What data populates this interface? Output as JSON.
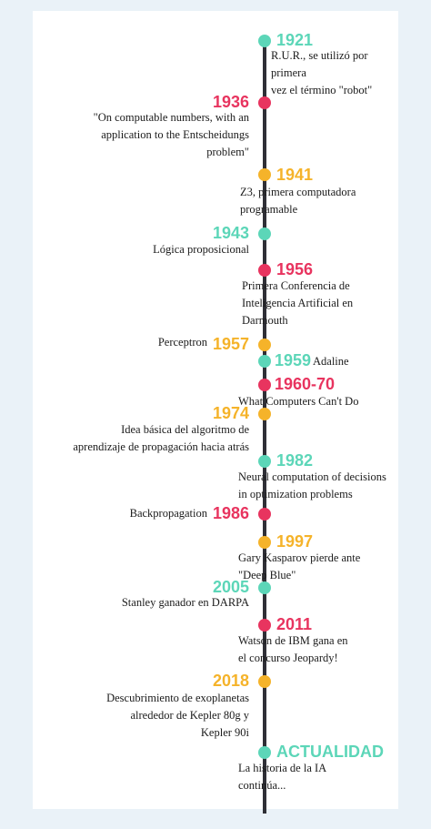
{
  "colors": {
    "mint": "#5cd6b8",
    "red": "#e8345f",
    "gold": "#f5b32a",
    "axis": "#2f2f36"
  },
  "events": [
    {
      "year": "1921",
      "text": "R.U.R., se utilizó por primera\nvez el término \"robot\""
    },
    {
      "year": "1936",
      "text": "\"On computable numbers, with an\napplication to the Entscheidungs\nproblem\""
    },
    {
      "year": "1941",
      "text": "Z3, primera computadora\nprogramable"
    },
    {
      "year": "1943",
      "text": "Lógica proposicional"
    },
    {
      "year": "1956",
      "text": "Primera Conferencia de\nInteligencia Artificial en\nDarmouth"
    },
    {
      "year": "1957",
      "text": "Perceptron"
    },
    {
      "year": "1959",
      "text": "Adaline"
    },
    {
      "year": "1960-70",
      "text": "What Computers Can't Do"
    },
    {
      "year": "1974",
      "text": "Idea básica del algoritmo de\naprendizaje de propagación hacia atrás"
    },
    {
      "year": "1982",
      "text": "Neural computation of decisions\nin optimization problems"
    },
    {
      "year": "1986",
      "text": "Backpropagation"
    },
    {
      "year": "1997",
      "text": "Gary Kasparov pierde ante\n\"Deep Blue\""
    },
    {
      "year": "2005",
      "text": "Stanley ganador en DARPA"
    },
    {
      "year": "2011",
      "text": "Watson de IBM  gana en\nel concurso  Jeopardy!"
    },
    {
      "year": "2018",
      "text": "Descubrimiento de exoplanetas\nalrededor de Kepler 80g y\nKepler 90i"
    },
    {
      "year": "ACTUALIDAD",
      "text": "La historia de la IA\ncontinúa..."
    }
  ]
}
